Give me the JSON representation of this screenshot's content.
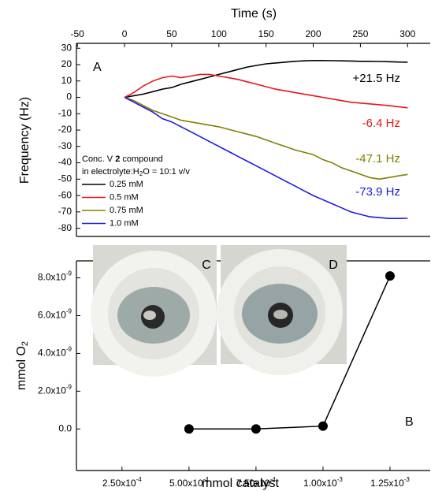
{
  "chart_data": [
    {
      "type": "line",
      "x_label": "Time (s)",
      "y_label": "Frequency (Hz)",
      "panel_label": "A",
      "xlim": [
        -51,
        324
      ],
      "xticks": [
        -50,
        0,
        50,
        100,
        150,
        200,
        250,
        300
      ],
      "ylim": [
        -85,
        33
      ],
      "yticks": [
        -80,
        -70,
        -60,
        -50,
        -40,
        -30,
        -20,
        -10,
        0,
        10,
        20,
        30
      ],
      "legend_title": [
        [
          "Conc. V ",
          "2",
          " compound"
        ],
        [
          "in electrolyte:H",
          "2",
          "O = 10:1 v/v"
        ]
      ],
      "x": [
        0,
        10,
        20,
        30,
        40,
        50,
        60,
        70,
        80,
        90,
        100,
        110,
        120,
        130,
        140,
        150,
        160,
        170,
        180,
        190,
        200,
        210,
        220,
        230,
        240,
        250,
        260,
        270,
        280,
        290,
        300
      ],
      "series": [
        {
          "name": "0.25 mM",
          "color": "#000000",
          "values": [
            0,
            1,
            2,
            3.5,
            5,
            6,
            8,
            9.5,
            11,
            12.5,
            14,
            15.5,
            17,
            18.5,
            19.5,
            20.5,
            21,
            21.5,
            22,
            22.3,
            22.5,
            22.5,
            22.4,
            22.3,
            22.2,
            22,
            22,
            21.9,
            21.8,
            21.6,
            21.5
          ]
        },
        {
          "name": "0.5 mM",
          "color": "#e8151b",
          "values": [
            0,
            3,
            7,
            10,
            12,
            13,
            12,
            13,
            14,
            14,
            13,
            12,
            11,
            9.5,
            8,
            6.5,
            5,
            4,
            3,
            2,
            1,
            0,
            -1,
            -2,
            -3,
            -3.5,
            -4,
            -4.5,
            -5,
            -5.7,
            -6.4
          ]
        },
        {
          "name": "0.75 mM",
          "color": "#808000",
          "values": [
            0,
            -2,
            -5,
            -8,
            -10,
            -12,
            -14,
            -15,
            -16,
            -17,
            -18,
            -19.5,
            -21,
            -22.5,
            -24,
            -26,
            -28,
            -30,
            -32,
            -33.5,
            -35,
            -38,
            -40,
            -43,
            -45,
            -47,
            -49,
            -50,
            -49,
            -48,
            -47.1
          ]
        },
        {
          "name": "1.0 mM",
          "color": "#1b1be0",
          "values": [
            0,
            -3,
            -6,
            -9,
            -13,
            -15,
            -18,
            -21,
            -24,
            -27,
            -30,
            -33,
            -36,
            -39,
            -42,
            -45,
            -48,
            -51,
            -54,
            -57,
            -60,
            -62.5,
            -65,
            -67.5,
            -70,
            -71.5,
            -73,
            -73.5,
            -74,
            -74,
            -73.9
          ]
        }
      ],
      "annotations": [
        {
          "text": "+21.5 Hz",
          "color": "#000000"
        },
        {
          "text": "-6.4 Hz",
          "color": "#e8151b"
        },
        {
          "text": "-47.1 Hz",
          "color": "#808000"
        },
        {
          "text": "-73.9 Hz",
          "color": "#1b1be0"
        }
      ]
    },
    {
      "type": "line",
      "markers": true,
      "x_label": "mmol catalyst",
      "y_label": [
        "mmol O",
        "2"
      ],
      "panel_label": "B",
      "inset_labels": [
        "C",
        "D"
      ],
      "xlim": [
        8e-05,
        0.0014
      ],
      "xticks": [
        {
          "value": 0.00025,
          "label": "2.50x10-4"
        },
        {
          "value": 0.0005,
          "label": "5.00x10-4"
        },
        {
          "value": 0.00075,
          "label": "7.50x10-4"
        },
        {
          "value": 0.001,
          "label": "1.00x10-3"
        },
        {
          "value": 0.00125,
          "label": "1.25x10-3"
        }
      ],
      "ylim": [
        -2.2e-09,
        8.9e-09
      ],
      "yticks": [
        {
          "value": 0,
          "label": "0.0"
        },
        {
          "value": 2e-09,
          "label": "2.0x10-9"
        },
        {
          "value": 4e-09,
          "label": "4.0x10-9"
        },
        {
          "value": 6e-09,
          "label": "6.0x10-9"
        },
        {
          "value": 8e-09,
          "label": "8.0x10-9"
        }
      ],
      "x": [
        0.0005,
        0.00075,
        0.001,
        0.00125
      ],
      "values": [
        0,
        0,
        1.5e-10,
        8.1e-09
      ],
      "color": "#000000"
    }
  ]
}
